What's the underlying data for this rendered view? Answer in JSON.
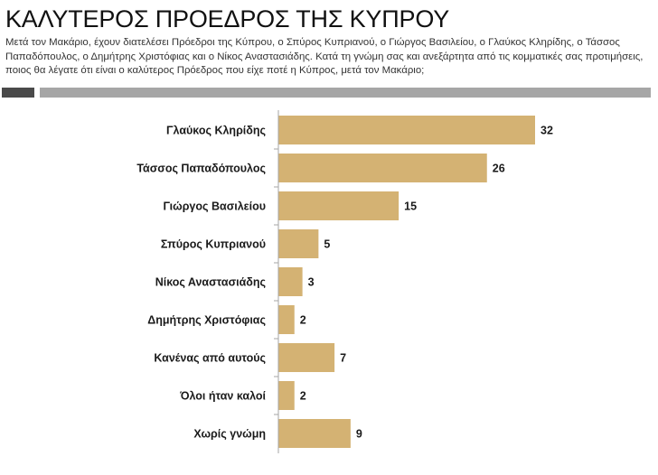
{
  "chart_data": {
    "type": "bar",
    "orientation": "horizontal",
    "title": "ΚΑΛΥΤΕΡΟΣ ΠΡΟΕΔΡΟΣ ΤΗΣ ΚΥΠΡΟΥ",
    "subtitle": "Μετά τον Μακάριο, έχουν διατελέσει Πρόεδροι της Κύπρου, ο Σπύρος Κυπριανού, ο Γιώργος Βασιλείου, ο Γλαύκος Κληρίδης, ο Τάσσος Παπαδόπουλος, ο Δημήτρης Χριστόφιας και ο Νίκος Αναστασιάδης. Κατά τη γνώμη σας και ανεξάρτητα από τις κομματικές σας προτιμήσεις, ποιος θα λέγατε ότι είναι ο καλύτερος Πρόεδρος που είχε ποτέ η Κύπρος,  μετά τον Μακάριο;",
    "categories": [
      "Γλαύκος Κληρίδης",
      "Τάσσος Παπαδόπουλος",
      "Γιώργος Βασιλείου",
      "Σπύρος Κυπριανού",
      "Νίκος Αναστασιάδης",
      "Δημήτρης Χριστόφιας",
      "Κανένας από αυτούς",
      "Όλοι ήταν καλοί",
      "Χωρίς γνώμη"
    ],
    "values": [
      32,
      26,
      15,
      5,
      3,
      2,
      7,
      2,
      9
    ],
    "xlim": [
      0,
      32
    ],
    "grid": false,
    "bar_color": "#d4b273",
    "axis_color": "#a6a6a6"
  }
}
